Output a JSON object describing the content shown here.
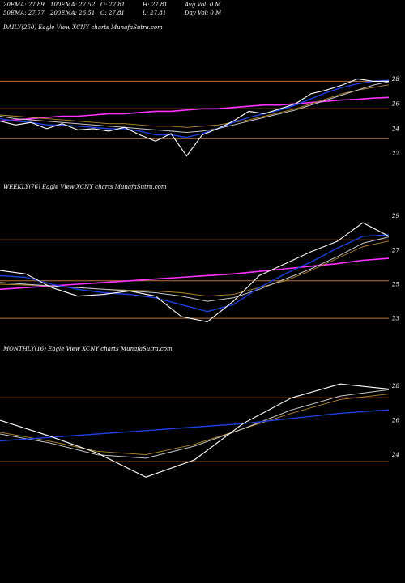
{
  "header": {
    "row1": [
      "20EMA: 27.89",
      "100EMA: 27.52",
      "O: 27.81",
      "H: 27.81",
      "Avg Vol: 0  M"
    ],
    "row2": [
      "50EMA: 27.77",
      "200EMA: 26.51",
      "C: 27.81",
      "L: 27.81",
      "Day Vol: 0  M"
    ]
  },
  "colors": {
    "background": "#000000",
    "price": "#ffffff",
    "ema_fast": "#1c3fe0",
    "ema_mid": "#c9c9c9",
    "ema_slow": "#b38a2a",
    "ema_long": "#ff33ff",
    "level": "#b8723a"
  },
  "chart_data": [
    {
      "type": "line",
      "title": "DAILY(250) Eagle  View XCNY charts MunafaSutra.com",
      "ylim": [
        21,
        29
      ],
      "levels": [
        27.8,
        25.6,
        23.2
      ],
      "yticks": [
        28,
        26,
        24,
        22
      ],
      "x": [
        0,
        10,
        20,
        30,
        40,
        50,
        60,
        70,
        80,
        90,
        100,
        110,
        120,
        130,
        140,
        150,
        160,
        170,
        180,
        190,
        200,
        210,
        220,
        230,
        240,
        250
      ],
      "series": [
        {
          "role": "price",
          "values": [
            24.6,
            24.3,
            24.5,
            24.0,
            24.4,
            23.9,
            24.0,
            23.8,
            24.1,
            23.5,
            23.0,
            23.6,
            21.8,
            23.5,
            24.0,
            24.6,
            25.4,
            25.2,
            25.6,
            26.0,
            26.8,
            27.1,
            27.5,
            28.0,
            27.8,
            27.81
          ]
        },
        {
          "role": "ema_fast",
          "values": [
            24.8,
            24.6,
            24.5,
            24.3,
            24.3,
            24.2,
            24.1,
            24.0,
            24.0,
            23.8,
            23.5,
            23.5,
            23.3,
            23.6,
            24.0,
            24.5,
            24.9,
            25.2,
            25.5,
            25.9,
            26.4,
            26.9,
            27.3,
            27.6,
            27.8,
            27.89
          ]
        },
        {
          "role": "ema_mid",
          "values": [
            25.0,
            24.8,
            24.7,
            24.6,
            24.5,
            24.4,
            24.3,
            24.2,
            24.1,
            24.0,
            23.9,
            23.8,
            23.7,
            23.8,
            24.0,
            24.3,
            24.6,
            24.9,
            25.2,
            25.5,
            25.9,
            26.3,
            26.7,
            27.1,
            27.5,
            27.77
          ]
        },
        {
          "role": "ema_slow",
          "values": [
            25.1,
            25.0,
            24.9,
            24.8,
            24.7,
            24.6,
            24.5,
            24.4,
            24.4,
            24.3,
            24.2,
            24.2,
            24.1,
            24.2,
            24.3,
            24.5,
            24.7,
            25.0,
            25.3,
            25.6,
            26.0,
            26.4,
            26.8,
            27.1,
            27.3,
            27.52
          ]
        },
        {
          "role": "ema_long",
          "values": [
            24.6,
            24.7,
            24.8,
            24.9,
            25.0,
            25.0,
            25.1,
            25.2,
            25.2,
            25.3,
            25.4,
            25.4,
            25.5,
            25.6,
            25.6,
            25.7,
            25.8,
            25.9,
            25.9,
            26.0,
            26.1,
            26.2,
            26.3,
            26.35,
            26.45,
            26.51
          ]
        }
      ]
    },
    {
      "type": "line",
      "title": "WEEKLY(76) Eagle  View XCNY charts MunafaSutra.com",
      "ylim": [
        22.2,
        29.6
      ],
      "levels": [
        27.6,
        25.2,
        23.0
      ],
      "yticks": [
        29,
        27,
        25,
        23
      ],
      "x": [
        0,
        5,
        10,
        15,
        20,
        25,
        30,
        35,
        40,
        45,
        50,
        55,
        60,
        65,
        70,
        75
      ],
      "series": [
        {
          "role": "price",
          "values": [
            25.8,
            25.6,
            24.8,
            24.3,
            24.4,
            24.6,
            24.3,
            23.1,
            22.8,
            24.0,
            25.5,
            26.2,
            26.9,
            27.5,
            28.6,
            27.81
          ]
        },
        {
          "role": "ema_fast",
          "values": [
            25.5,
            25.4,
            25.0,
            24.7,
            24.5,
            24.4,
            24.2,
            23.8,
            23.4,
            23.8,
            24.8,
            25.6,
            26.3,
            27.1,
            27.8,
            27.89
          ]
        },
        {
          "role": "ema_mid",
          "values": [
            25.1,
            25.0,
            24.9,
            24.8,
            24.7,
            24.6,
            24.5,
            24.3,
            24.0,
            24.2,
            24.7,
            25.3,
            25.9,
            26.6,
            27.4,
            27.77
          ]
        },
        {
          "role": "ema_slow",
          "values": [
            25.0,
            24.95,
            24.9,
            24.8,
            24.7,
            24.65,
            24.6,
            24.5,
            24.3,
            24.4,
            24.8,
            25.2,
            25.8,
            26.5,
            27.2,
            27.52
          ]
        },
        {
          "role": "ema_long",
          "values": [
            24.7,
            24.8,
            24.9,
            25.0,
            25.1,
            25.2,
            25.3,
            25.4,
            25.5,
            25.6,
            25.75,
            25.9,
            26.05,
            26.2,
            26.4,
            26.51
          ]
        }
      ]
    },
    {
      "type": "line",
      "title": "MONTHLY(16) Eagle  View XCNY charts MunafaSutra.com",
      "ylim": [
        22.2,
        29.0
      ],
      "levels": [
        27.3,
        23.6
      ],
      "yticks": [
        28,
        26,
        24
      ],
      "x": [
        0,
        2,
        4,
        6,
        8,
        10,
        12,
        14,
        16
      ],
      "series": [
        {
          "role": "price",
          "values": [
            26.0,
            25.1,
            24.1,
            22.7,
            23.7,
            25.8,
            27.3,
            28.1,
            27.81
          ]
        },
        {
          "role": "ema_fast",
          "values": [
            24.8,
            25.0,
            25.2,
            25.4,
            25.6,
            25.8,
            26.1,
            26.4,
            26.6
          ]
        },
        {
          "role": "ema_mid",
          "values": [
            25.2,
            24.7,
            24.0,
            23.8,
            24.5,
            25.5,
            26.6,
            27.4,
            27.77
          ]
        },
        {
          "role": "ema_slow",
          "values": [
            25.3,
            24.8,
            24.2,
            24.0,
            24.6,
            25.5,
            26.4,
            27.2,
            27.52
          ]
        }
      ]
    }
  ]
}
